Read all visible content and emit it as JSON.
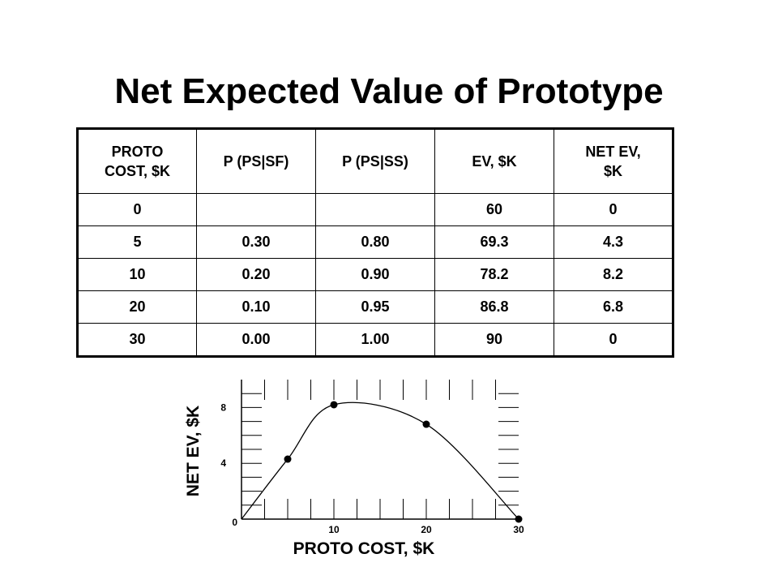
{
  "title": "Net Expected Value of Prototype",
  "table": {
    "headers": [
      "PROTO\nCOST, $K",
      "P (PS|SF)",
      "P (PS|SS)",
      "EV, $K",
      "NET EV,\n$K"
    ],
    "rows": [
      [
        "0",
        "",
        "",
        "60",
        "0"
      ],
      [
        "5",
        "0.30",
        "0.80",
        "69.3",
        "4.3"
      ],
      [
        "10",
        "0.20",
        "0.90",
        "78.2",
        "8.2"
      ],
      [
        "20",
        "0.10",
        "0.95",
        "86.8",
        "6.8"
      ],
      [
        "30",
        "0.00",
        "1.00",
        "90",
        "0"
      ]
    ]
  },
  "chart_data": {
    "type": "line",
    "xlabel": "PROTO COST, $K",
    "ylabel": "NET EV, $K",
    "x": [
      0,
      5,
      10,
      20,
      30
    ],
    "y": [
      0,
      4.3,
      8.2,
      6.8,
      0
    ],
    "markers_x": [
      5,
      10,
      20,
      30
    ],
    "xlim": [
      0,
      30
    ],
    "ylim": [
      0,
      10
    ],
    "xticks": [
      10,
      20,
      30
    ],
    "yticks": [
      4,
      8
    ],
    "origin_label": "0",
    "grid": false,
    "legend": "none"
  }
}
